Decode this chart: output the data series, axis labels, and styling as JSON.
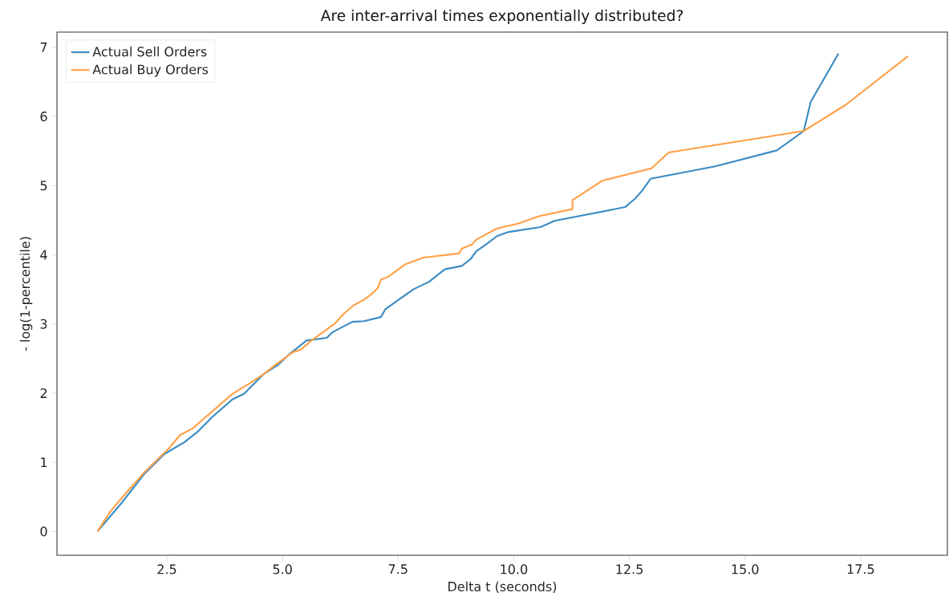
{
  "chart_data": {
    "type": "line",
    "title": "Are inter-arrival times exponentially distributed?",
    "xlabel": "Delta t (seconds)",
    "ylabel": "- log(1-percentile)",
    "xlim": [
      0.125,
      19.375
    ],
    "ylim": [
      -0.344,
      7.22
    ],
    "xticks": [
      {
        "value": 2.5,
        "label": "2.5"
      },
      {
        "value": 5.0,
        "label": "5.0"
      },
      {
        "value": 7.5,
        "label": "7.5"
      },
      {
        "value": 10.0,
        "label": "10.0"
      },
      {
        "value": 12.5,
        "label": "12.5"
      },
      {
        "value": 15.0,
        "label": "15.0"
      },
      {
        "value": 17.5,
        "label": "17.5"
      }
    ],
    "yticks": [
      0,
      1,
      2,
      3,
      4,
      5,
      6,
      7
    ],
    "legend": "top left",
    "grid": false,
    "marker": "none",
    "line_style": "solid",
    "series": [
      {
        "name": "Actual Sell Orders",
        "color": "#3b8bc2",
        "x": [
          1.0,
          1.52,
          2.01,
          2.45,
          2.88,
          3.18,
          3.49,
          3.92,
          4.17,
          4.6,
          4.91,
          5.16,
          5.37,
          5.52,
          5.96,
          6.08,
          6.51,
          6.76,
          7.13,
          7.22,
          7.49,
          7.83,
          8.17,
          8.51,
          8.88,
          9.07,
          9.19,
          9.4,
          9.64,
          9.89,
          10.58,
          10.88,
          12.41,
          12.62,
          12.78,
          12.96,
          14.36,
          15.69,
          16.27,
          16.42,
          17.02
        ],
        "values": [
          0,
          0.41,
          0.83,
          1.12,
          1.29,
          1.45,
          1.66,
          1.91,
          1.99,
          2.28,
          2.41,
          2.57,
          2.68,
          2.76,
          2.8,
          2.88,
          3.03,
          3.04,
          3.1,
          3.21,
          3.34,
          3.5,
          3.61,
          3.79,
          3.84,
          3.94,
          4.05,
          4.15,
          4.27,
          4.33,
          4.4,
          4.49,
          4.69,
          4.81,
          4.93,
          5.1,
          5.28,
          5.51,
          5.79,
          6.21,
          6.91
        ]
      },
      {
        "name": "Actual Buy Orders",
        "color": "#ffa045",
        "x": [
          1.0,
          1.28,
          1.52,
          2.01,
          2.57,
          2.78,
          3.06,
          3.49,
          3.92,
          4.29,
          4.6,
          4.85,
          5.22,
          5.4,
          5.59,
          5.83,
          6.14,
          6.33,
          6.54,
          6.76,
          6.94,
          7.06,
          7.13,
          7.28,
          7.65,
          8.05,
          8.82,
          8.88,
          9.1,
          9.19,
          9.64,
          10.09,
          10.56,
          11.27,
          11.27,
          11.91,
          12.98,
          13.35,
          16.27,
          17.18,
          18.52
        ],
        "values": [
          0,
          0.29,
          0.48,
          0.85,
          1.22,
          1.39,
          1.49,
          1.74,
          1.99,
          2.14,
          2.28,
          2.41,
          2.59,
          2.63,
          2.74,
          2.86,
          3.01,
          3.15,
          3.27,
          3.35,
          3.44,
          3.52,
          3.64,
          3.68,
          3.86,
          3.96,
          4.02,
          4.09,
          4.15,
          4.22,
          4.38,
          4.45,
          4.56,
          4.66,
          4.79,
          5.07,
          5.25,
          5.48,
          5.79,
          6.17,
          6.87
        ]
      }
    ]
  }
}
